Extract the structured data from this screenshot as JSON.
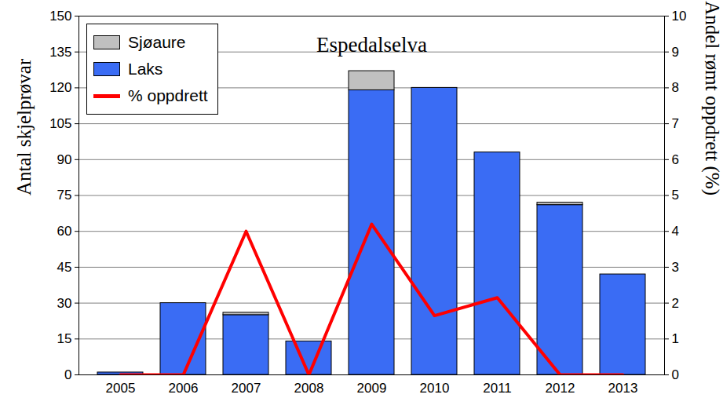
{
  "chart_data": {
    "type": "bar",
    "title": "Espedalselva",
    "y_label": "Antal skjelprøvar",
    "y2_label": "Andel rømt oppdrett (%)",
    "categories": [
      "2005",
      "2006",
      "2007",
      "2008",
      "2009",
      "2010",
      "2011",
      "2012",
      "2013"
    ],
    "stacked": true,
    "grid": true,
    "legend": "upper left",
    "ylim": [
      0,
      150
    ],
    "yticks": [
      0,
      15,
      30,
      45,
      60,
      75,
      90,
      105,
      120,
      135,
      150
    ],
    "y2lim": [
      0,
      10
    ],
    "y2ticks": [
      0,
      1,
      2,
      3,
      4,
      5,
      6,
      7,
      8,
      9,
      10
    ],
    "series": [
      {
        "name": "Laks",
        "type": "bar",
        "color": "#3a6cf4",
        "values": [
          1,
          30,
          25,
          14,
          119,
          120,
          93,
          71,
          42
        ]
      },
      {
        "name": "Sjøaure",
        "type": "bar",
        "color": "#c0c0c0",
        "values": [
          0,
          0,
          1,
          0,
          8,
          0,
          0,
          1,
          0
        ]
      },
      {
        "name": "% oppdrett",
        "type": "line",
        "axis": "y2",
        "color": "#ff0000",
        "values": [
          0,
          0,
          4,
          0,
          4.2,
          1.65,
          2.15,
          0,
          0
        ]
      }
    ]
  }
}
